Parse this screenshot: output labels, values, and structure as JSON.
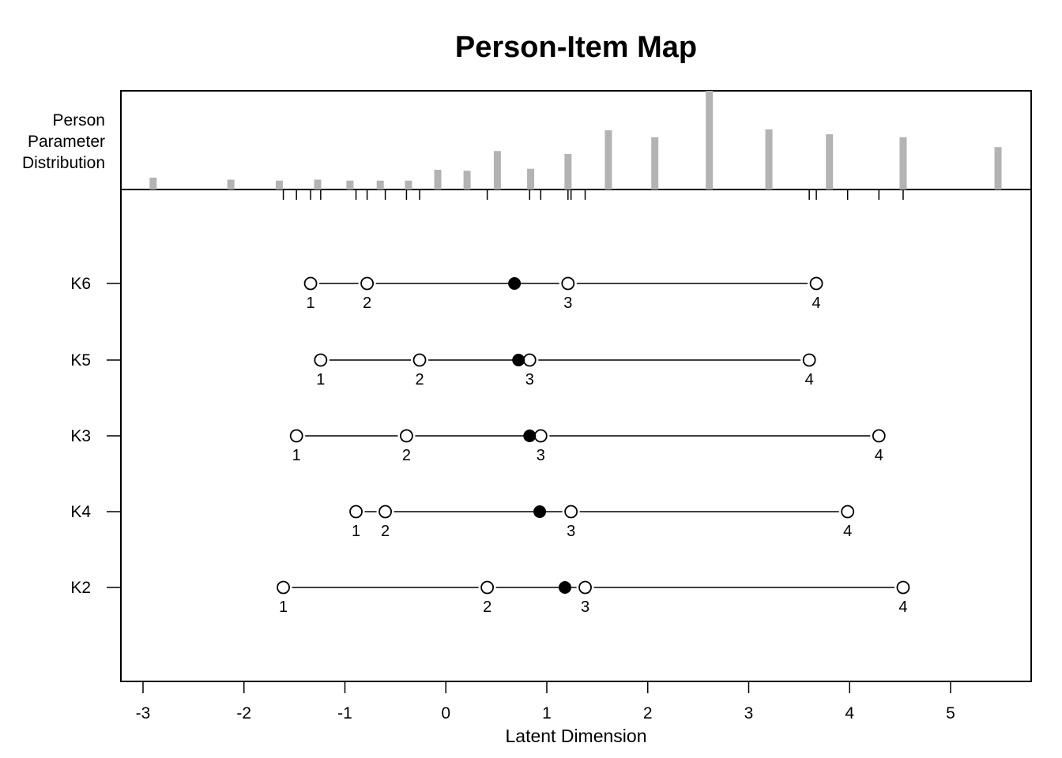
{
  "chart_data": {
    "type": "scatter",
    "title": "Person-Item Map",
    "xlabel": "Latent Dimension",
    "xlim": [
      -3.25,
      5.8
    ],
    "x_ticks": [
      -3,
      -2,
      -1,
      0,
      1,
      2,
      3,
      4,
      5
    ],
    "x_tick_labels": [
      "-3",
      "-2",
      "-1",
      "0",
      "1",
      "2",
      "3",
      "4",
      "5"
    ],
    "person_panel_label": [
      "Person",
      "Parameter",
      "Distribution"
    ],
    "person_distribution": {
      "x": [
        -2.9,
        -2.13,
        -1.65,
        -1.27,
        -0.95,
        -0.65,
        -0.37,
        -0.08,
        0.21,
        0.51,
        0.84,
        1.21,
        1.61,
        2.07,
        2.61,
        3.2,
        3.8,
        4.53,
        5.47
      ],
      "heights": [
        1.2,
        1.0,
        0.9,
        1.0,
        0.9,
        0.9,
        0.9,
        2.0,
        1.9,
        3.9,
        2.1,
        3.6,
        6.0,
        5.3,
        10.0,
        6.1,
        5.6,
        5.3,
        4.3
      ]
    },
    "threshold_ticks": [
      -1.61,
      -1.48,
      -1.34,
      -1.24,
      -0.89,
      -0.78,
      -0.6,
      -0.39,
      -0.26,
      0.41,
      0.83,
      0.94,
      1.21,
      1.24,
      1.38,
      3.6,
      3.67,
      3.98,
      4.29,
      4.53
    ],
    "items": [
      {
        "name": "K6",
        "thresholds": [
          -1.34,
          -0.78,
          1.21,
          3.67
        ],
        "threshold_labels": [
          "1",
          "2",
          "3",
          "4"
        ],
        "location": 0.68
      },
      {
        "name": "K5",
        "thresholds": [
          -1.24,
          -0.26,
          0.83,
          3.6
        ],
        "threshold_labels": [
          "1",
          "2",
          "3",
          "4"
        ],
        "location": 0.72
      },
      {
        "name": "K3",
        "thresholds": [
          -1.48,
          -0.39,
          0.94,
          4.29
        ],
        "threshold_labels": [
          "1",
          "2",
          "3",
          "4"
        ],
        "location": 0.83
      },
      {
        "name": "K4",
        "thresholds": [
          -0.89,
          -0.6,
          1.24,
          3.98
        ],
        "threshold_labels": [
          "1",
          "2",
          "3",
          "4"
        ],
        "location": 0.93
      },
      {
        "name": "K2",
        "thresholds": [
          -1.61,
          0.41,
          1.38,
          4.53
        ],
        "threshold_labels": [
          "1",
          "2",
          "3",
          "4"
        ],
        "location": 1.18
      }
    ],
    "bar_color": "#b3b3b3",
    "line_color": "#000000",
    "grid": false
  }
}
